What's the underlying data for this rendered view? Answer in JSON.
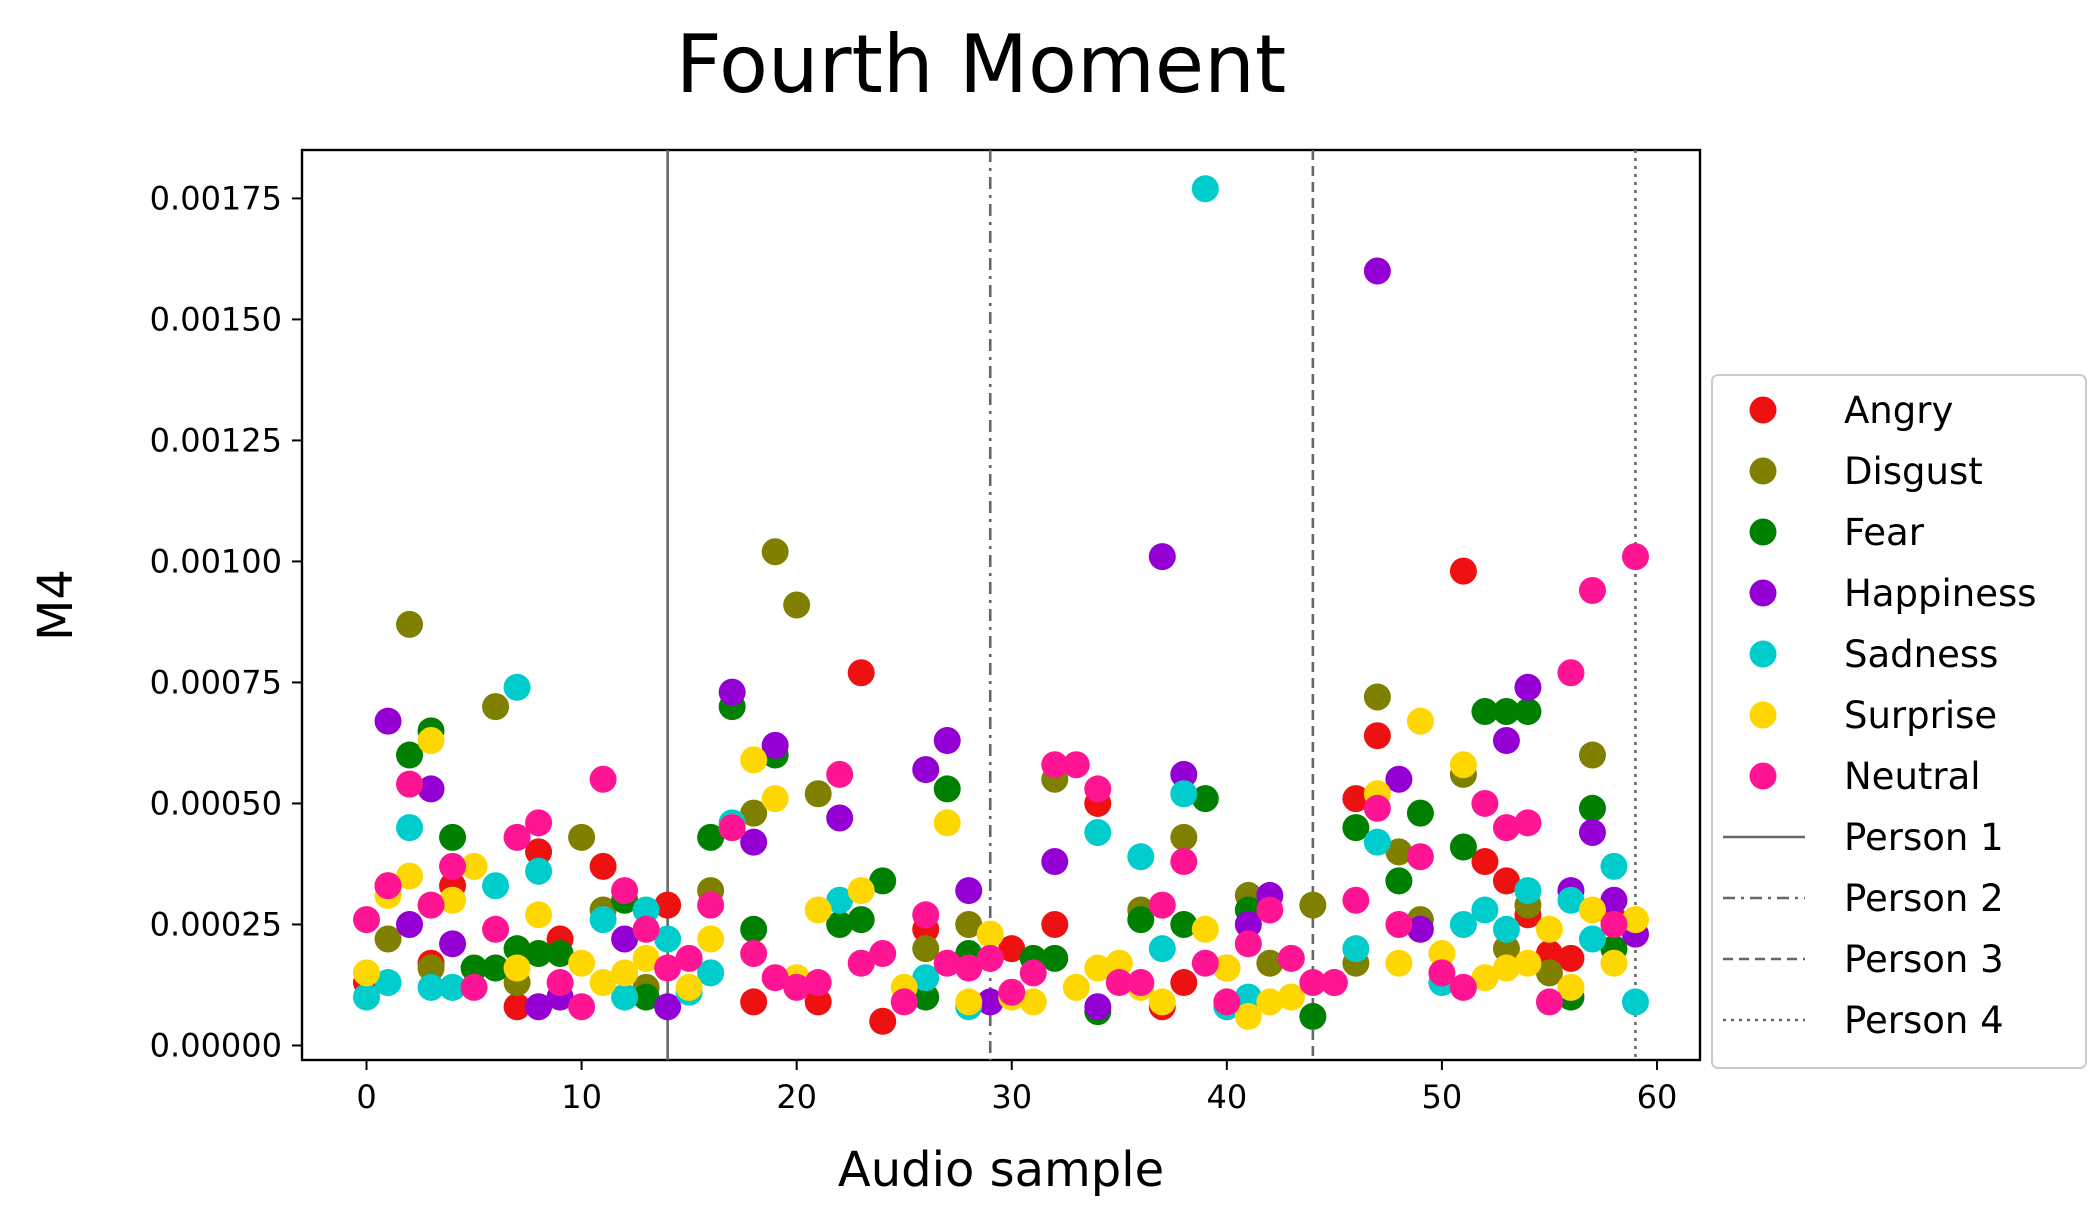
{
  "chart_data": {
    "type": "scatter",
    "title": "Fourth Moment",
    "xlabel": "Audio sample",
    "ylabel": "M4",
    "xlim": [
      -3,
      62
    ],
    "ylim": [
      -3e-05,
      0.00185
    ],
    "xticks": [
      0,
      10,
      20,
      30,
      40,
      50,
      60
    ],
    "xtick_labels": [
      "0",
      "10",
      "20",
      "30",
      "40",
      "50",
      "60"
    ],
    "yticks": [
      0,
      0.00025,
      0.0005,
      0.00075,
      0.001,
      0.00125,
      0.0015,
      0.00175
    ],
    "ytick_labels": [
      "0.00000",
      "0.00025",
      "0.00050",
      "0.00075",
      "0.00100",
      "0.00125",
      "0.00150",
      "0.00175"
    ],
    "grid": false,
    "legend_position": "right, outside",
    "series": [
      {
        "name": "Angry",
        "color": "#ee1111",
        "x": [
          0,
          1,
          3,
          4,
          7,
          8,
          9,
          11,
          14,
          18,
          21,
          23,
          24,
          26,
          30,
          32,
          34,
          37,
          38,
          40,
          46,
          47,
          51,
          52,
          53,
          54,
          55,
          56,
          58
        ],
        "y": [
          0.00013,
          0.00033,
          0.00017,
          0.00033,
          8e-05,
          0.0004,
          0.00022,
          0.00037,
          0.00029,
          9e-05,
          9e-05,
          0.00077,
          5e-05,
          0.00024,
          0.0002,
          0.00025,
          0.0005,
          8e-05,
          0.00013,
          0.00016,
          0.00051,
          0.00064,
          0.00098,
          0.00038,
          0.00034,
          0.00027,
          0.00019,
          0.00018,
          0.00026
        ]
      },
      {
        "name": "Disgust",
        "color": "#808000",
        "x": [
          1,
          2,
          3,
          6,
          7,
          10,
          11,
          13,
          16,
          18,
          19,
          20,
          21,
          26,
          28,
          32,
          36,
          38,
          41,
          42,
          44,
          46,
          47,
          48,
          49,
          51,
          53,
          54,
          55,
          57
        ],
        "y": [
          0.00022,
          0.00087,
          0.00016,
          0.0007,
          0.00013,
          0.00043,
          0.00028,
          0.00012,
          0.00032,
          0.00048,
          0.00102,
          0.00091,
          0.00052,
          0.0002,
          0.00025,
          0.00055,
          0.00028,
          0.00043,
          0.00031,
          0.00017,
          0.00029,
          0.00017,
          0.00072,
          0.0004,
          0.00026,
          0.00056,
          0.0002,
          0.00029,
          0.00015,
          0.0006
        ]
      },
      {
        "name": "Fear",
        "color": "#008000",
        "x": [
          2,
          3,
          4,
          5,
          6,
          7,
          8,
          9,
          12,
          13,
          16,
          17,
          18,
          19,
          22,
          23,
          24,
          26,
          27,
          28,
          31,
          32,
          34,
          36,
          38,
          39,
          41,
          44,
          46,
          48,
          49,
          51,
          52,
          53,
          54,
          56,
          57,
          58
        ],
        "y": [
          0.0006,
          0.00065,
          0.00043,
          0.00016,
          0.00016,
          0.0002,
          0.00019,
          0.00019,
          0.0003,
          0.0001,
          0.00043,
          0.0007,
          0.00024,
          0.0006,
          0.00025,
          0.00026,
          0.00034,
          0.0001,
          0.00053,
          0.00019,
          0.00018,
          0.00018,
          7e-05,
          0.00026,
          0.00025,
          0.00051,
          0.00028,
          6e-05,
          0.00045,
          0.00034,
          0.00048,
          0.00041,
          0.00069,
          0.00069,
          0.00069,
          0.0001,
          0.00049,
          0.0002
        ]
      },
      {
        "name": "Happiness",
        "color": "#9400d3",
        "x": [
          1,
          2,
          3,
          4,
          8,
          9,
          12,
          14,
          17,
          18,
          19,
          22,
          26,
          27,
          28,
          29,
          32,
          34,
          37,
          38,
          41,
          42,
          47,
          48,
          49,
          53,
          54,
          56,
          57,
          58,
          59
        ],
        "y": [
          0.00067,
          0.00025,
          0.00053,
          0.00021,
          8e-05,
          0.0001,
          0.00022,
          8e-05,
          0.00073,
          0.00042,
          0.00062,
          0.00047,
          0.00057,
          0.00063,
          0.00032,
          9e-05,
          0.00038,
          8e-05,
          0.00101,
          0.00056,
          0.00025,
          0.00031,
          0.0016,
          0.00055,
          0.00024,
          0.00063,
          0.00074,
          0.00032,
          0.00044,
          0.0003,
          0.00023
        ]
      },
      {
        "name": "Sadness",
        "color": "#00cccc",
        "x": [
          0,
          1,
          2,
          3,
          4,
          6,
          7,
          8,
          11,
          12,
          13,
          14,
          15,
          16,
          17,
          22,
          26,
          28,
          34,
          36,
          37,
          38,
          39,
          40,
          41,
          45,
          46,
          47,
          50,
          51,
          52,
          53,
          54,
          56,
          57,
          58,
          59
        ],
        "y": [
          0.0001,
          0.00013,
          0.00045,
          0.00012,
          0.00012,
          0.00033,
          0.00074,
          0.00036,
          0.00026,
          0.0001,
          0.00028,
          0.00022,
          0.00011,
          0.00015,
          0.00046,
          0.0003,
          0.00014,
          8e-05,
          0.00044,
          0.00039,
          0.0002,
          0.00052,
          0.00177,
          8e-05,
          0.0001,
          0.00013,
          0.0002,
          0.00042,
          0.00013,
          0.00025,
          0.00028,
          0.00024,
          0.00032,
          0.0003,
          0.00022,
          0.00037,
          9e-05
        ]
      },
      {
        "name": "Surprise",
        "color": "#ffd700",
        "x": [
          0,
          1,
          2,
          3,
          4,
          5,
          7,
          8,
          10,
          11,
          12,
          13,
          15,
          16,
          17,
          18,
          19,
          20,
          21,
          23,
          25,
          27,
          28,
          29,
          30,
          31,
          33,
          34,
          35,
          36,
          37,
          39,
          40,
          41,
          42,
          43,
          45,
          47,
          48,
          49,
          50,
          51,
          52,
          53,
          54,
          55,
          56,
          57,
          58,
          59
        ],
        "y": [
          0.00015,
          0.00031,
          0.00035,
          0.00063,
          0.0003,
          0.00037,
          0.00016,
          0.00027,
          0.00017,
          0.00013,
          0.00015,
          0.00018,
          0.00012,
          0.00022,
          0.00045,
          0.00059,
          0.00051,
          0.00014,
          0.00028,
          0.00032,
          0.00012,
          0.00046,
          9e-05,
          0.00023,
          0.0001,
          9e-05,
          0.00012,
          0.00016,
          0.00017,
          0.00012,
          9e-05,
          0.00024,
          0.00016,
          6e-05,
          9e-05,
          0.0001,
          0.00013,
          0.00052,
          0.00017,
          0.00067,
          0.00019,
          0.00058,
          0.00014,
          0.00016,
          0.00017,
          0.00024,
          0.00012,
          0.00028,
          0.00017,
          0.00026
        ]
      },
      {
        "name": "Neutral",
        "color": "#ff1493",
        "x": [
          0,
          1,
          2,
          3,
          4,
          5,
          6,
          7,
          8,
          9,
          10,
          11,
          12,
          13,
          14,
          15,
          16,
          17,
          18,
          19,
          20,
          21,
          22,
          23,
          24,
          25,
          26,
          27,
          28,
          29,
          30,
          31,
          32,
          33,
          34,
          35,
          36,
          37,
          38,
          39,
          40,
          41,
          42,
          43,
          44,
          45,
          46,
          47,
          48,
          49,
          50,
          51,
          52,
          53,
          54,
          55,
          56,
          57,
          58,
          59
        ],
        "y": [
          0.00026,
          0.00033,
          0.00054,
          0.00029,
          0.00037,
          0.00012,
          0.00024,
          0.00043,
          0.00046,
          0.00013,
          8e-05,
          0.00055,
          0.00032,
          0.00024,
          0.00016,
          0.00018,
          0.00029,
          0.00045,
          0.00019,
          0.00014,
          0.00012,
          0.00013,
          0.00056,
          0.00017,
          0.00019,
          9e-05,
          0.00027,
          0.00017,
          0.00016,
          0.00018,
          0.00011,
          0.00015,
          0.00058,
          0.00058,
          0.00053,
          0.00013,
          0.00013,
          0.00029,
          0.00038,
          0.00017,
          9e-05,
          0.00021,
          0.00028,
          0.00018,
          0.00013,
          0.00013,
          0.0003,
          0.00049,
          0.00025,
          0.00039,
          0.00015,
          0.00012,
          0.0005,
          0.00045,
          0.00046,
          9e-05,
          0.00077,
          0.00094,
          0.00025,
          0.00101
        ]
      }
    ],
    "vlines": [
      {
        "name": "Person 1",
        "x": 14,
        "style": "solid"
      },
      {
        "name": "Person 2",
        "x": 29,
        "style": "dashdot"
      },
      {
        "name": "Person 3",
        "x": 44,
        "style": "dashed"
      },
      {
        "name": "Person 4",
        "x": 59,
        "style": "dotted"
      }
    ]
  }
}
